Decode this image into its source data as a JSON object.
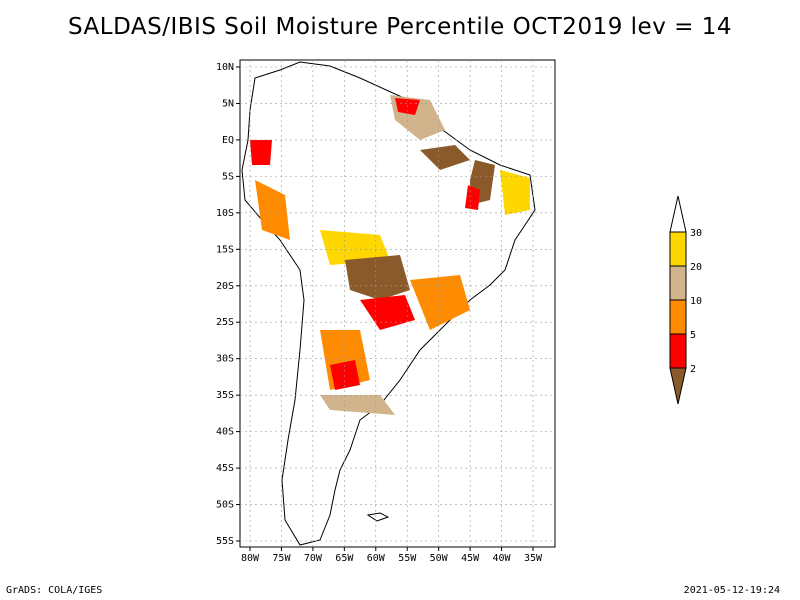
{
  "title": "SALDAS/IBIS Soil Moisture Percentile OCT2019 lev = 14",
  "map": {
    "lat_labels": [
      "10N",
      "5N",
      "EQ",
      "5S",
      "10S",
      "15S",
      "20S",
      "25S",
      "30S",
      "35S",
      "40S",
      "45S",
      "50S",
      "55S"
    ],
    "lon_labels": [
      "80W",
      "75W",
      "70W",
      "65W",
      "60W",
      "55W",
      "50W",
      "45W",
      "40W",
      "35W"
    ],
    "grid": true
  },
  "legend": {
    "labels": [
      "2",
      "5",
      "10",
      "20",
      "30"
    ],
    "colors": [
      "#8b5a2b",
      "#ff0000",
      "#ff8c00",
      "#d2b48c",
      "#ffd700",
      "#ffffff"
    ]
  },
  "footer": {
    "left": "GrADS: COLA/IGES",
    "right": "2021-05-12-19:24"
  }
}
